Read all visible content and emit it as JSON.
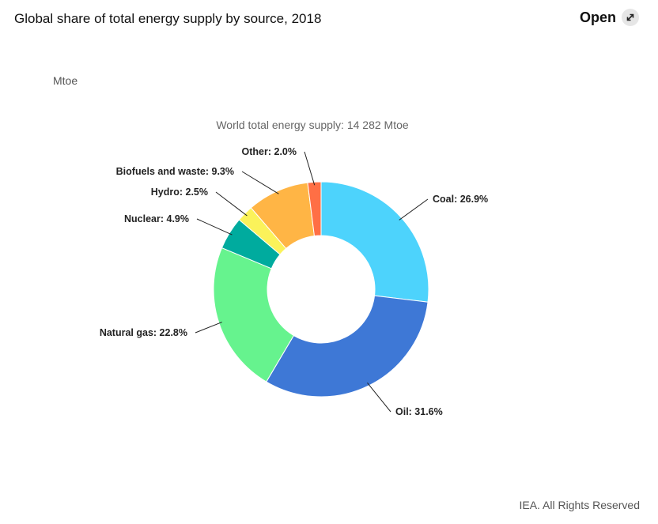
{
  "header": {
    "title": "Global share of total energy supply by source, 2018",
    "open_label": "Open",
    "open_icon": "expand-arrows-icon"
  },
  "chart_data": {
    "type": "pie",
    "unit_label": "Mtoe",
    "subtitle": "World total energy supply: 14 282 Mtoe",
    "donut": true,
    "start_angle_deg": 0,
    "slices": [
      {
        "name": "Coal",
        "value": 26.9,
        "label": "Coal: 26.9%",
        "color": "#4dd3fc"
      },
      {
        "name": "Oil",
        "value": 31.6,
        "label": "Oil: 31.6%",
        "color": "#3e78d6"
      },
      {
        "name": "Natural gas",
        "value": 22.8,
        "label": "Natural gas: 22.8%",
        "color": "#66f38e"
      },
      {
        "name": "Nuclear",
        "value": 4.9,
        "label": "Nuclear: 4.9%",
        "color": "#00ab9e"
      },
      {
        "name": "Hydro",
        "value": 2.5,
        "label": "Hydro: 2.5%",
        "color": "#fbf25a"
      },
      {
        "name": "Biofuels and waste",
        "value": 9.3,
        "label": "Biofuels and waste: 9.3%",
        "color": "#ffb545"
      },
      {
        "name": "Other",
        "value": 2.0,
        "label": "Other: 2.0%",
        "color": "#ff6f45"
      }
    ]
  },
  "footer": {
    "credit": "IEA. All Rights Reserved"
  }
}
